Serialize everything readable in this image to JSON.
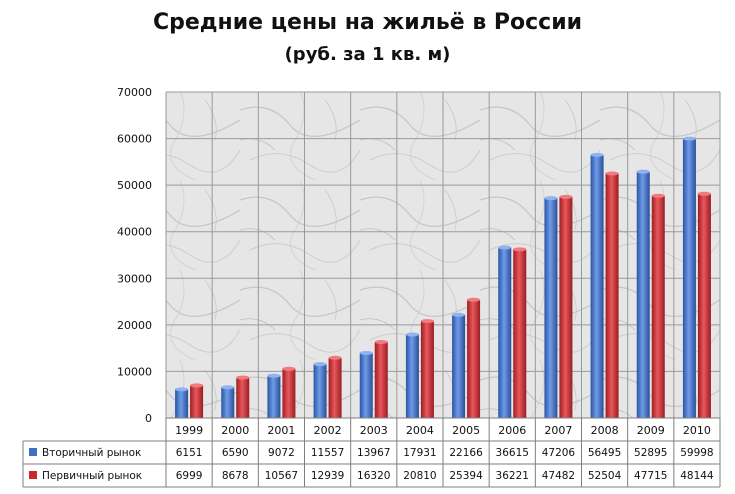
{
  "chart_data": {
    "type": "bar",
    "title": "Средние цены на жильё в России",
    "subtitle": "(руб. за 1 кв. м)",
    "xlabel": "",
    "ylabel": "",
    "ylim": [
      0,
      70000
    ],
    "yticks": [
      0,
      10000,
      20000,
      30000,
      40000,
      50000,
      60000,
      70000
    ],
    "grid": true,
    "legend": "data-table-left",
    "categories": [
      "1999",
      "2000",
      "2001",
      "2002",
      "2003",
      "2004",
      "2005",
      "2006",
      "2007",
      "2008",
      "2009",
      "2010"
    ],
    "series": [
      {
        "name": "Вторичный рынок",
        "color": "#3d6fc4",
        "values": [
          6151,
          6590,
          9072,
          11557,
          13967,
          17931,
          22166,
          36615,
          47206,
          56495,
          52895,
          59998
        ]
      },
      {
        "name": "Первичный рынок",
        "color": "#c8282d",
        "values": [
          6999,
          8678,
          10567,
          12939,
          16320,
          20810,
          25394,
          36221,
          47482,
          52504,
          47715,
          48144
        ]
      }
    ]
  }
}
